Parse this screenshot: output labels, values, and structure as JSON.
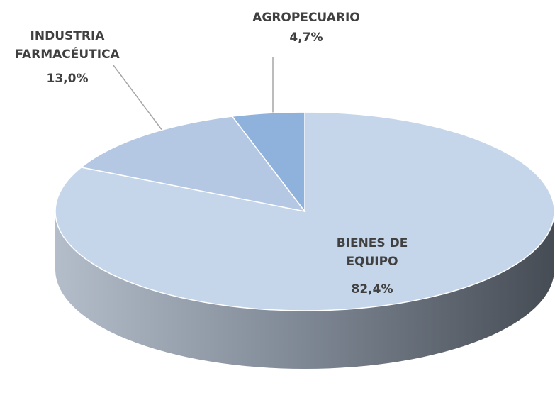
{
  "chart_data": {
    "type": "pie",
    "categories": [
      "BIENES DE EQUIPO",
      "INDUSTRIA FARMACÉUTICA",
      "AGROPECUARIO"
    ],
    "values": [
      82.4,
      13.0,
      4.7
    ],
    "value_labels": [
      "82,4%",
      "13,0%",
      "4,7%"
    ],
    "colors": [
      "#c6d6ea",
      "#b4c8e4",
      "#8fb2dc"
    ]
  }
}
